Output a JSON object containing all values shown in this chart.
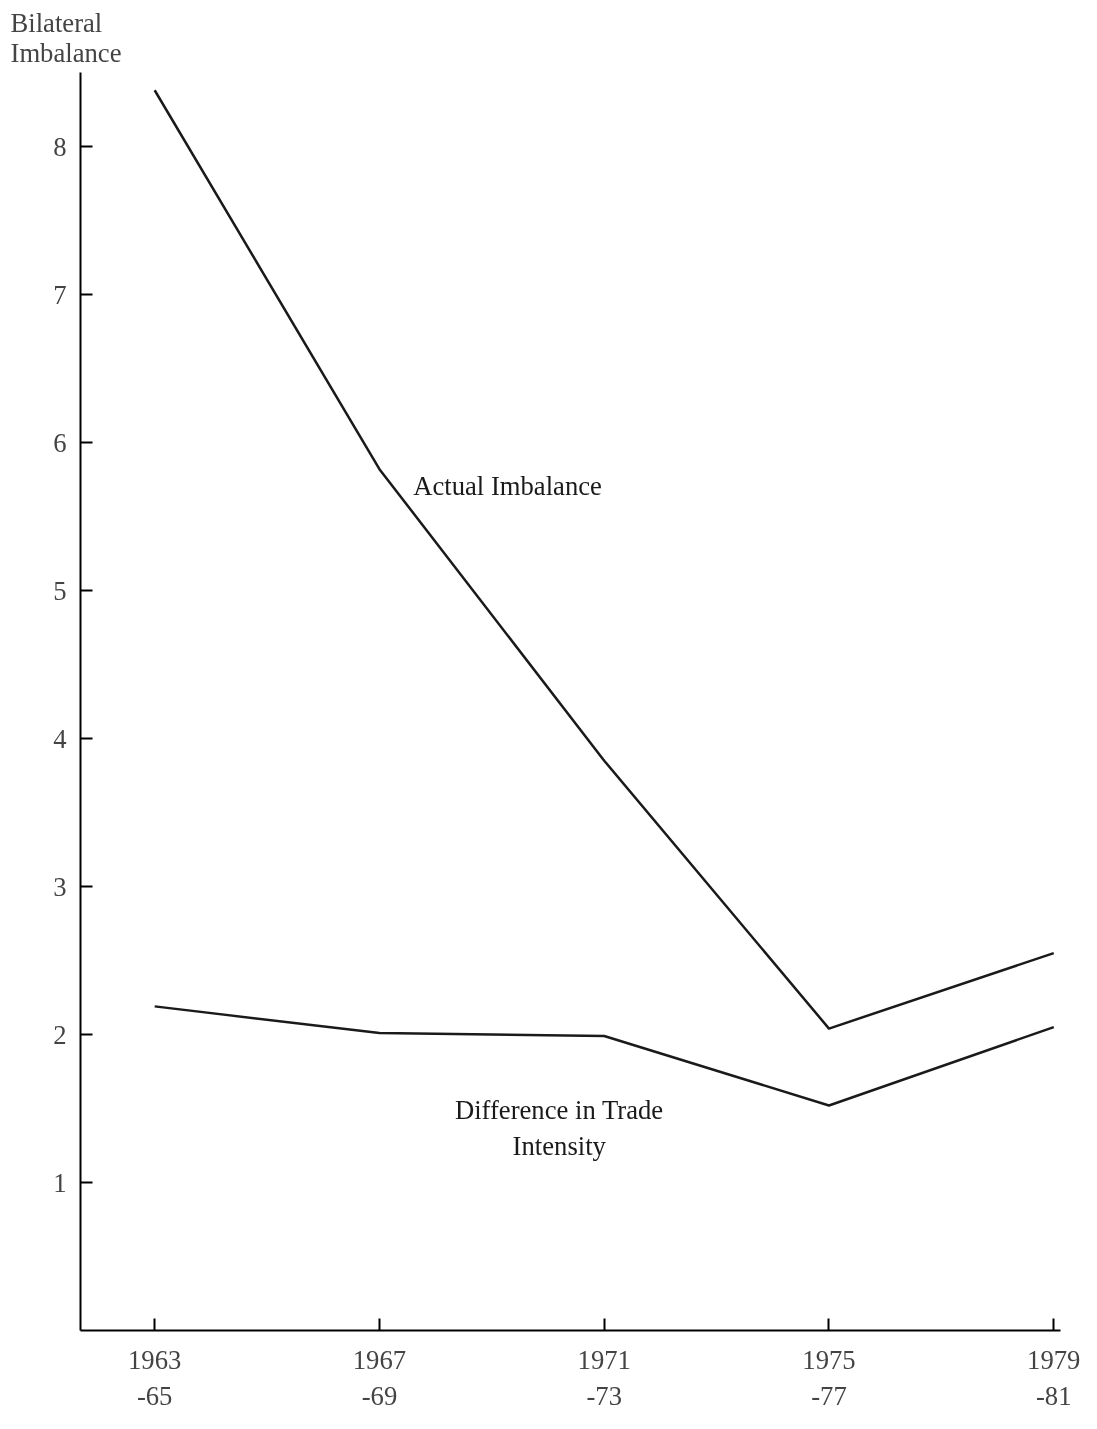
{
  "chart_data": {
    "type": "line",
    "ylabel": "Bilateral\nImbalance",
    "categories": [
      "1963\n-65",
      "1967\n-69",
      "1971\n-73",
      "1975\n-77",
      "1979\n-81"
    ],
    "series": [
      {
        "name": "Actual Imbalance",
        "color": "#1a1a1a",
        "values": [
          8.38,
          5.82,
          3.85,
          2.04,
          2.55
        ]
      },
      {
        "name": "Difference in Trade\nIntensity",
        "color": "#1a1a1a",
        "values": [
          2.19,
          2.01,
          1.99,
          1.52,
          2.05
        ]
      }
    ],
    "ylim": [
      0,
      8.5
    ],
    "yticks": [
      1,
      2,
      3,
      4,
      5,
      6,
      7,
      8
    ],
    "grid": false,
    "legend": false,
    "marker": "none",
    "line_style": "solid"
  }
}
